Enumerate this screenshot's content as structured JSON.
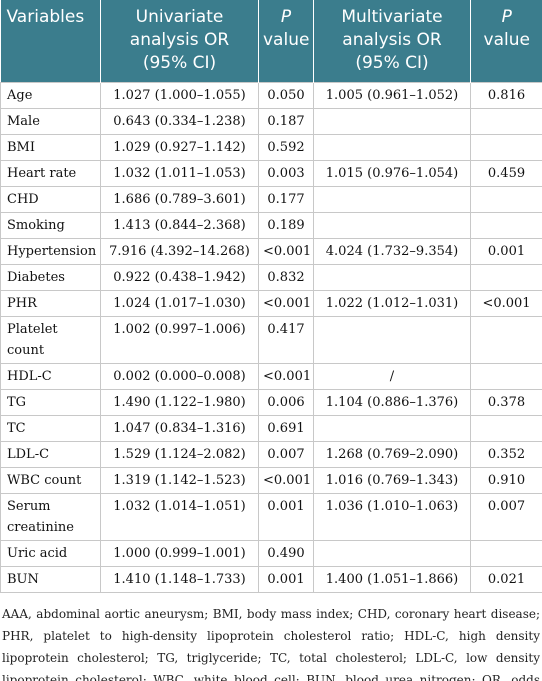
{
  "table": {
    "header": [
      "Variables",
      "Univariate analysis OR (95% CI)",
      {
        "em": "P",
        "text": "value"
      },
      "Multivariate analysis OR (95% CI)",
      {
        "em": "P",
        "text": "value"
      }
    ],
    "rows": [
      [
        "Age",
        "1.027 (1.000–1.055)",
        "0.050",
        "1.005 (0.961–1.052)",
        "0.816"
      ],
      [
        "Male",
        "0.643 (0.334–1.238)",
        "0.187",
        null,
        null
      ],
      [
        "BMI",
        "1.029 (0.927–1.142)",
        "0.592",
        null,
        null
      ],
      [
        "Heart rate",
        "1.032 (1.011–1.053)",
        "0.003",
        "1.015 (0.976–1.054)",
        "0.459"
      ],
      [
        "CHD",
        "1.686 (0.789–3.601)",
        "0.177",
        null,
        null
      ],
      [
        "Smoking",
        "1.413 (0.844–2.368)",
        "0.189",
        null,
        null
      ],
      [
        "Hypertension",
        "7.916 (4.392–14.268)",
        "<0.001",
        "4.024 (1.732–9.354)",
        "0.001"
      ],
      [
        "Diabetes",
        "0.922 (0.438–1.942)",
        "0.832",
        null,
        null
      ],
      [
        "PHR",
        "1.024 (1.017–1.030)",
        "<0.001",
        "1.022 (1.012–1.031)",
        "<0.001"
      ],
      [
        "Platelet count",
        "1.002 (0.997–1.006)",
        "0.417",
        null,
        null
      ],
      [
        "HDL-C",
        "0.002 (0.000–0.008)",
        "<0.001",
        "/",
        null
      ],
      [
        "TG",
        "1.490 (1.122–1.980)",
        "0.006",
        "1.104 (0.886–1.376)",
        "0.378"
      ],
      [
        "TC",
        "1.047 (0.834–1.316)",
        "0.691",
        null,
        null
      ],
      [
        "LDL-C",
        "1.529 (1.124–2.082)",
        "0.007",
        "1.268 (0.769–2.090)",
        "0.352"
      ],
      [
        "WBC count",
        "1.319 (1.142–1.523)",
        "<0.001",
        "1.016 (0.769–1.343)",
        "0.910"
      ],
      [
        "Serum creatinine",
        "1.032 (1.014–1.051)",
        "0.001",
        "1.036 (1.010–1.063)",
        "0.007"
      ],
      [
        "Uric acid",
        "1.000 (0.999–1.001)",
        "0.490",
        null,
        null
      ],
      [
        "BUN",
        "1.410 (1.148–1.733)",
        "0.001",
        "1.400 (1.051–1.866)",
        "0.021"
      ]
    ]
  },
  "footnote": "AAA, abdominal aortic aneurysm; BMI, body mass index; CHD, coronary heart disease; PHR, platelet to high-density lipoprotein cholesterol ratio; HDL-C, high density lipoprotein cholesterol; TG, triglyceride; TC, total cholesterol; LDL-C, low density lipoprotein cholesterol; WBC, white blood cell; BUN, blood urea nitrogen; OR, odds ratio; CI, confidence interval."
}
